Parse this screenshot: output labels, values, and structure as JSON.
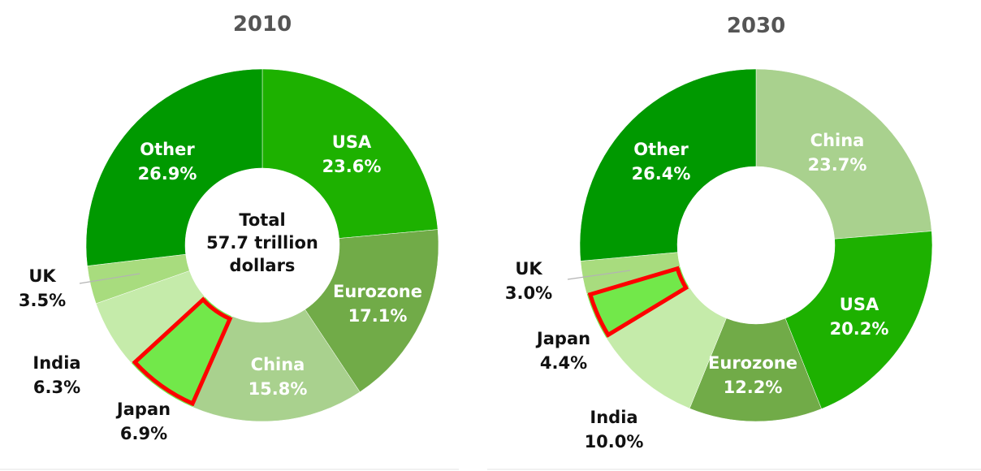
{
  "chart_data": [
    {
      "type": "pie",
      "title": "2010",
      "center_text": [
        "Total",
        "57.7 trillion",
        "dollars"
      ],
      "unit": "%",
      "highlight": "Japan",
      "slices": [
        {
          "label": "USA",
          "value": 23.6,
          "value_text": "23.6%",
          "color": "#1DB100"
        },
        {
          "label": "Eurozone",
          "value": 17.1,
          "value_text": "17.1%",
          "color": "#71AB48"
        },
        {
          "label": "China",
          "value": 15.8,
          "value_text": "15.8%",
          "color": "#A9D18E"
        },
        {
          "label": "Japan",
          "value": 6.9,
          "value_text": "6.9%",
          "color": "#72E84A"
        },
        {
          "label": "India",
          "value": 6.3,
          "value_text": "6.3%",
          "color": "#C5EBAA"
        },
        {
          "label": "UK",
          "value": 3.5,
          "value_text": "3.5%",
          "color": "#A8DC7E"
        },
        {
          "label": "Other",
          "value": 26.9,
          "value_text": "26.9%",
          "color": "#009900"
        }
      ]
    },
    {
      "type": "pie",
      "title": "2030",
      "center_text": [],
      "unit": "%",
      "highlight": "Japan",
      "slices": [
        {
          "label": "China",
          "value": 23.7,
          "value_text": "23.7%",
          "color": "#A9D18E"
        },
        {
          "label": "USA",
          "value": 20.2,
          "value_text": "20.2%",
          "color": "#1DB100"
        },
        {
          "label": "Eurozone",
          "value": 12.2,
          "value_text": "12.2%",
          "color": "#71AB48"
        },
        {
          "label": "India",
          "value": 10.0,
          "value_text": "10.0%",
          "color": "#C5EBAA"
        },
        {
          "label": "Japan",
          "value": 4.4,
          "value_text": "4.4%",
          "color": "#72E84A"
        },
        {
          "label": "UK",
          "value": 3.0,
          "value_text": "3.0%",
          "color": "#A8DC7E"
        },
        {
          "label": "Other",
          "value": 26.4,
          "value_text": "26.4%",
          "color": "#009900"
        }
      ]
    }
  ],
  "colors": {
    "highlight_outline": "#FF0000",
    "title": "#555555",
    "label_dark": "#111111",
    "label_light": "#FFFFFF"
  }
}
